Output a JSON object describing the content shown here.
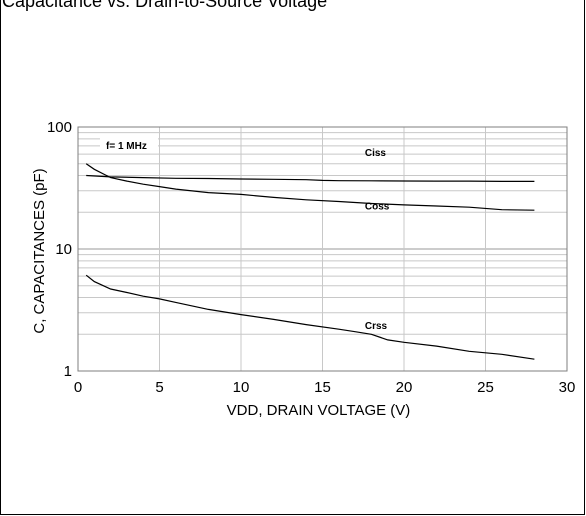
{
  "header": {
    "caption": "Capacitance vs. Drain-to-Source Voltage"
  },
  "chart_data": {
    "type": "line",
    "title": "",
    "xlabel": "VDD, DRAIN VOLTAGE (V)",
    "ylabel": "C, CAPACITANCES (pF)",
    "xlim": [
      0,
      30
    ],
    "ylim": [
      1,
      100
    ],
    "yscale": "log",
    "grid": true,
    "xticks": [
      0,
      5,
      10,
      15,
      20,
      25,
      30
    ],
    "xtick_labels": [
      "0",
      "5",
      "10",
      "15",
      "20",
      "25",
      "30"
    ],
    "yticks": [
      1,
      10,
      100
    ],
    "ytick_labels": [
      "1",
      "10",
      "100"
    ],
    "annotation": "f= 1 MHz",
    "series": [
      {
        "name": "Ciss",
        "x": [
          0.5,
          2,
          4,
          6,
          8,
          10,
          12,
          14,
          15,
          16,
          18,
          20,
          22,
          24,
          26,
          28
        ],
        "y": [
          40,
          39,
          38.5,
          38,
          37.8,
          37.5,
          37.3,
          37,
          36.5,
          36.3,
          36.2,
          36.1,
          36,
          36,
          35.8,
          35.8
        ]
      },
      {
        "name": "Coss",
        "x": [
          0.5,
          1,
          2,
          3,
          4,
          5,
          6,
          8,
          10,
          12,
          14,
          16,
          18,
          20,
          22,
          24,
          26,
          28
        ],
        "y": [
          50,
          45,
          38.5,
          36,
          34,
          32.5,
          31,
          29,
          28,
          26.5,
          25.3,
          24.5,
          23.6,
          23,
          22.5,
          22,
          21,
          20.8
        ]
      },
      {
        "name": "Crss",
        "x": [
          0.5,
          1,
          2,
          3,
          4,
          5,
          6,
          8,
          10,
          12,
          14,
          16,
          17,
          18,
          19,
          20,
          22,
          24,
          26,
          28
        ],
        "y": [
          6.1,
          5.4,
          4.7,
          4.4,
          4.1,
          3.9,
          3.65,
          3.2,
          2.9,
          2.65,
          2.4,
          2.2,
          2.1,
          2.0,
          1.8,
          1.72,
          1.6,
          1.45,
          1.37,
          1.25
        ]
      }
    ]
  }
}
